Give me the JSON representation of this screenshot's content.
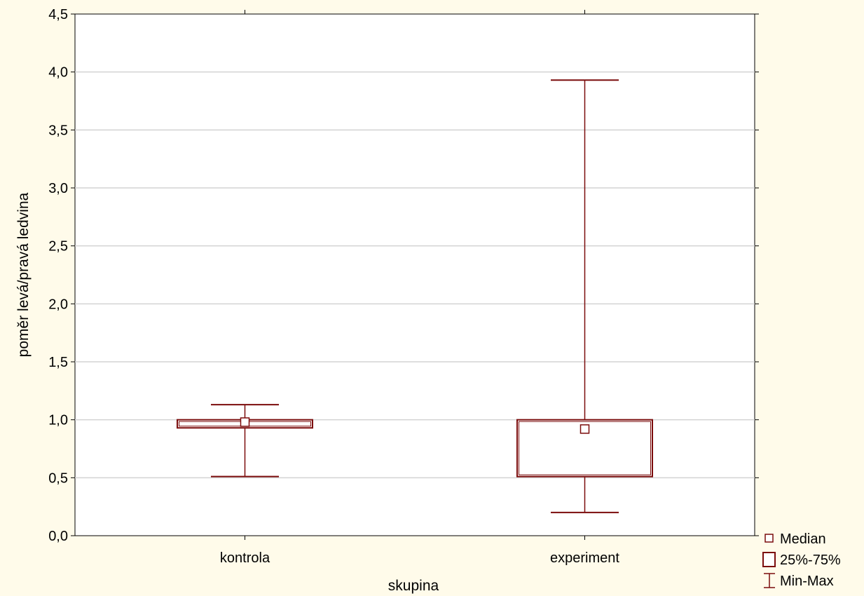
{
  "chart_data": {
    "type": "boxplot",
    "title": "",
    "xlabel": "skupina",
    "ylabel": "poměr levá/pravá ledvina",
    "ylim": [
      0,
      4.5
    ],
    "yticks": [
      0,
      0.5,
      1.0,
      1.5,
      2.0,
      2.5,
      3.0,
      3.5,
      4.0,
      4.5
    ],
    "ytick_labels": [
      "0,0",
      "0,5",
      "1,0",
      "1,5",
      "2,0",
      "2,5",
      "3,0",
      "3,5",
      "4,0",
      "4,5"
    ],
    "categories": [
      "kontrola",
      "experiment"
    ],
    "boxes": [
      {
        "category": "kontrola",
        "min": 0.51,
        "q1": 0.93,
        "median": 0.98,
        "q3": 1.0,
        "max": 1.13
      },
      {
        "category": "experiment",
        "min": 0.2,
        "q1": 0.51,
        "median": 0.92,
        "q3": 1.0,
        "max": 3.93
      }
    ],
    "grid": true,
    "legend": {
      "position": "bottom-right",
      "items": [
        {
          "label": "Median",
          "symbol": "small-square"
        },
        {
          "label": "25%-75%",
          "symbol": "box"
        },
        {
          "label": "Min-Max",
          "symbol": "whisker"
        }
      ]
    },
    "colors": {
      "box": "#7b0c0c",
      "grid": "#d3d3d3",
      "background": "#fffbea",
      "plot_bg": "#ffffff"
    }
  }
}
